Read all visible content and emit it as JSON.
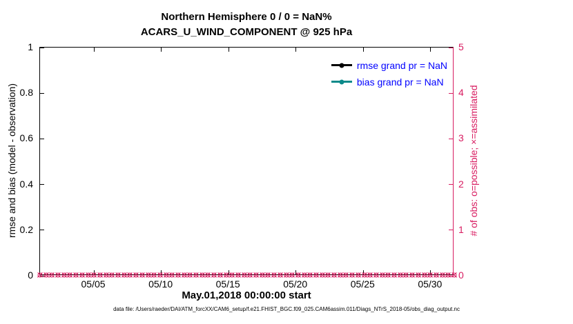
{
  "titles": {
    "line1": "Northern Hemisphere 0 / 0 = NaN%",
    "line2": "ACARS_U_WIND_COMPONENT @ 925 hPa"
  },
  "footer": "data file: /Users/raeder/DAI/ATM_forcXX/CAM6_setup/f.e21.FHIST_BGC.f09_025.CAM6assim.011/Diags_NTrS_2018-05/obs_diag_output.nc",
  "legend": {
    "text_color": "#0000ff",
    "items": [
      {
        "label": "rmse grand pr = NaN",
        "line_color": "#000000"
      },
      {
        "label": "bias grand pr = NaN",
        "line_color": "#0b8a8a"
      }
    ]
  },
  "colors": {
    "axis_left": "#000000",
    "axis_right": "#d81b60",
    "obs_marker": "#d81b60",
    "legend_text": "#0000ff"
  },
  "chart_data": {
    "type": "line",
    "title": "Northern Hemisphere 0 / 0 = NaN%",
    "subtitle": "ACARS_U_WIND_COMPONENT @ 925 hPa",
    "xlabel": "May.01,2018 00:00:00 start",
    "ylabel_left": "rmse and bias (model - observation)",
    "ylabel_right": "# of obs: o=possible; ×=assimilated",
    "grid": false,
    "legend_position": "top-right-inside",
    "x_range_days": [
      0,
      30.75
    ],
    "x_ticks": [
      {
        "day": 4,
        "label": "05/05"
      },
      {
        "day": 9,
        "label": "05/10"
      },
      {
        "day": 14,
        "label": "05/15"
      },
      {
        "day": 19,
        "label": "05/20"
      },
      {
        "day": 24,
        "label": "05/25"
      },
      {
        "day": 29,
        "label": "05/30"
      }
    ],
    "y_left": {
      "range": [
        0,
        1
      ],
      "ticks": [
        {
          "value": 0,
          "label": "0"
        },
        {
          "value": 0.2,
          "label": "0.2"
        },
        {
          "value": 0.4,
          "label": "0.4"
        },
        {
          "value": 0.6,
          "label": "0.6"
        },
        {
          "value": 0.8,
          "label": "0.8"
        },
        {
          "value": 1,
          "label": "1"
        }
      ]
    },
    "y_right": {
      "range": [
        0,
        5
      ],
      "ticks": [
        {
          "value": 0,
          "label": "0"
        },
        {
          "value": 1,
          "label": "1"
        },
        {
          "value": 2,
          "label": "2"
        },
        {
          "value": 3,
          "label": "3"
        },
        {
          "value": 4,
          "label": "4"
        },
        {
          "value": 5,
          "label": "5"
        }
      ]
    },
    "series": [
      {
        "name": "rmse grand pr = NaN",
        "color": "#000000",
        "values": []
      },
      {
        "name": "bias grand pr = NaN",
        "color": "#0b8a8a",
        "values": []
      }
    ],
    "obs_markers": {
      "possible_value": 0,
      "assimilated_value": 0,
      "y_value": 0,
      "count": 70,
      "color": "#d81b60"
    }
  }
}
